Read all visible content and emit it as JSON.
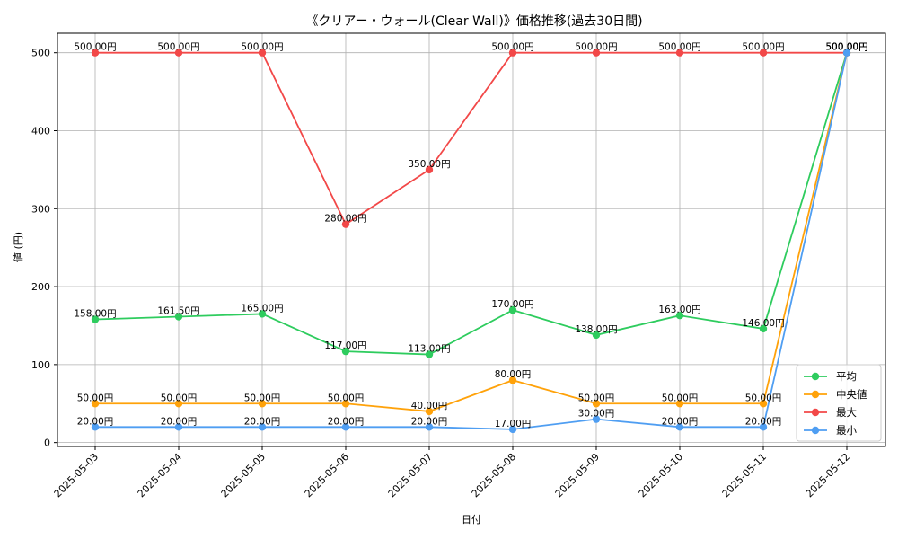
{
  "chart_data": {
    "type": "line",
    "title": "《クリアー・ウォール(Clear Wall)》価格推移(過去30日間)",
    "xlabel": "日付",
    "ylabel": "値 (円)",
    "categories": [
      "2025-05-03",
      "2025-05-04",
      "2025-05-05",
      "2025-05-06",
      "2025-05-07",
      "2025-05-08",
      "2025-05-09",
      "2025-05-10",
      "2025-05-11",
      "2025-05-12"
    ],
    "ylim": [
      -5,
      525
    ],
    "yticks": [
      0,
      100,
      200,
      300,
      400,
      500
    ],
    "grid": true,
    "legend_position": "bottom-right",
    "label_suffix": "円",
    "series": [
      {
        "name": "平均",
        "color": "#2ecc5e",
        "values": [
          158,
          161.5,
          165,
          117,
          113,
          170,
          138,
          163,
          146,
          500
        ]
      },
      {
        "name": "中央値",
        "color": "#ffa20a",
        "values": [
          50,
          50,
          50,
          50,
          40,
          80,
          50,
          50,
          50,
          500
        ]
      },
      {
        "name": "最大",
        "color": "#f24848",
        "values": [
          500,
          500,
          500,
          280,
          350,
          500,
          500,
          500,
          500,
          500
        ]
      },
      {
        "name": "最小",
        "color": "#4f9ef2",
        "values": [
          20,
          20,
          20,
          20,
          20,
          17,
          30,
          20,
          20,
          500
        ]
      }
    ]
  }
}
